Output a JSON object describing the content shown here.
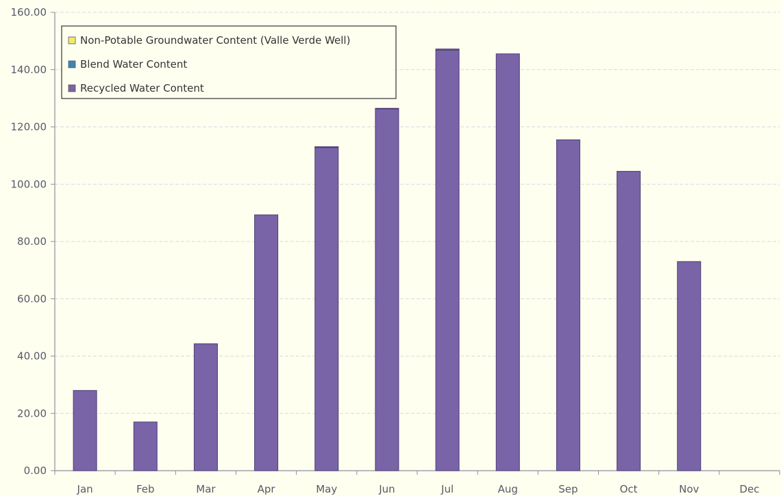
{
  "chart_data": {
    "type": "bar",
    "stacked": true,
    "categories": [
      "Jan",
      "Feb",
      "Mar",
      "Apr",
      "May",
      "Jun",
      "Jul",
      "Aug",
      "Sep",
      "Oct",
      "Nov",
      "Dec"
    ],
    "series": [
      {
        "name": "Recycled Water Content",
        "color": "#7a64a8",
        "values": [
          28.0,
          17.0,
          44.3,
          89.3,
          112.8,
          126.3,
          146.8,
          145.5,
          115.5,
          104.5,
          73.0,
          0
        ]
      },
      {
        "name": "Blend Water Content",
        "color": "#3b87b4",
        "values": [
          0,
          0,
          0,
          0,
          0.3,
          0.2,
          0.4,
          0,
          0,
          0,
          0,
          0
        ]
      },
      {
        "name": "Non-Potable Groundwater Content (Valle Verde Well)",
        "color": "#f2ea6a",
        "values": [
          0,
          0,
          0,
          0,
          0,
          0,
          0,
          0,
          0,
          0,
          0,
          0
        ]
      }
    ],
    "legend_order": [
      "Non-Potable Groundwater Content (Valle Verde Well)",
      "Blend Water Content",
      "Recycled Water Content"
    ],
    "y_ticks": [
      "0.00",
      "20.00",
      "40.00",
      "60.00",
      "80.00",
      "100.00",
      "120.00",
      "140.00",
      "160.00"
    ],
    "ylim": [
      0,
      160
    ],
    "grid": true,
    "legend_position": "top-left",
    "title": "",
    "xlabel": "",
    "ylabel": ""
  }
}
